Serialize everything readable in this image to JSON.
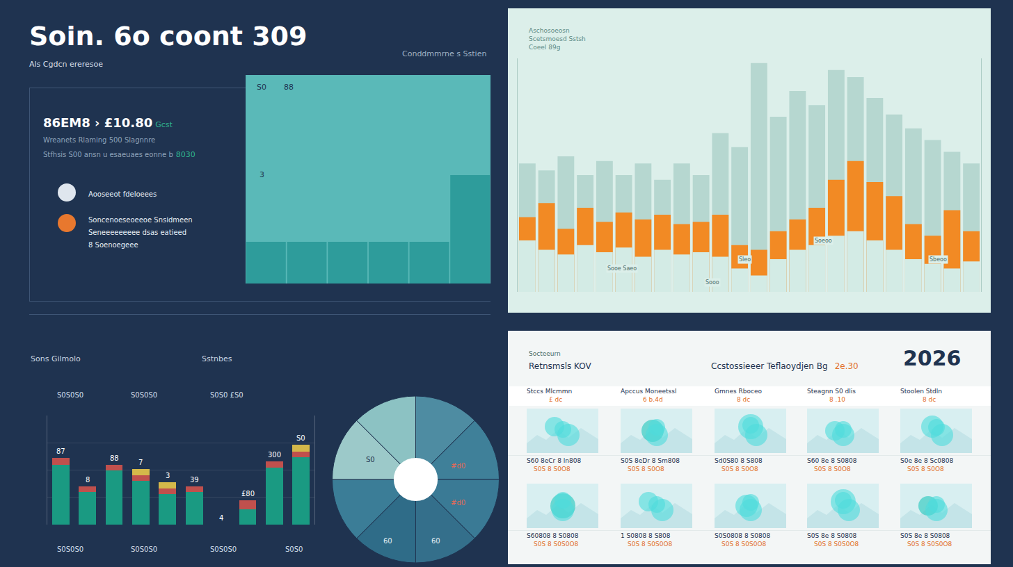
{
  "header": {
    "title": "Soin. 6o coont 309",
    "subtitle": "Als Cgdcn ereresoe",
    "note": "Conddmmrne s Sstien"
  },
  "summary": {
    "kpi": "86EM8 › £10.80",
    "kpi_tag": "Gcst",
    "line": "Wreanets Rlaming 500 Slagnnre",
    "line_text": "Stfhsis S00 ansn u esaeuaes eonne b",
    "line_value": "8030",
    "items": [
      [
        "Aooseeot fdeloeees"
      ],
      [
        "Soncenoeseoeeoe Snsidmeen",
        "Seneeeeeeeee dsas eatieed",
        "8 Soenoegeee"
      ]
    ]
  },
  "chart_data": [
    {
      "type": "bar",
      "categories": [
        null,
        null,
        null,
        null,
        null,
        null
      ],
      "values": [
        20,
        20,
        20,
        20,
        20,
        52
      ],
      "color": "#2e9c9b",
      "ylim": [
        0,
        100
      ],
      "yticks": [
        0,
        100
      ],
      "tick_labels": false,
      "annotations": [
        "S0",
        "88",
        "3"
      ]
    },
    {
      "type": "bar",
      "title": "Aschosoeosn\nScetsmoesd Sstsh\nCoeel 89g",
      "stacked": false,
      "categories": [
        null,
        null,
        null,
        null,
        null,
        null,
        null,
        null,
        null,
        null,
        null,
        null,
        null,
        null,
        null,
        null,
        null,
        null,
        null,
        null,
        null,
        null,
        null,
        null
      ],
      "series": [
        {
          "color": "#b6d7d0",
          "values": [
            55,
            52,
            58,
            50,
            56,
            50,
            55,
            48,
            55,
            50,
            68,
            62,
            98,
            75,
            86,
            80,
            95,
            92,
            83,
            76,
            70,
            65,
            60,
            55
          ]
        },
        {
          "color": "#f28a24",
          "values": [
            32,
            38,
            27,
            36,
            30,
            34,
            31,
            33,
            29,
            30,
            33,
            20,
            18,
            26,
            31,
            36,
            48,
            56,
            47,
            41,
            29,
            24,
            35,
            26
          ]
        },
        {
          "color": "#d3ebe5",
          "values": [
            22,
            18,
            16,
            20,
            17,
            19,
            15,
            18,
            16,
            17,
            15,
            10,
            7,
            14,
            18,
            20,
            24,
            26,
            22,
            18,
            14,
            12,
            10,
            13
          ]
        }
      ],
      "ylim": [
        0,
        100
      ],
      "yticks": [
        0,
        100
      ],
      "tick_labels": false,
      "annotations": [
        "Sooe Saeo",
        "Sooo",
        "Sleo",
        "Soeoo",
        "Sbeoo"
      ]
    },
    {
      "type": "bar",
      "title": "Sons Gilmolo",
      "subtitle": "Sstnbes",
      "stacked": true,
      "categories": [
        null,
        null,
        null,
        null,
        null,
        null,
        null,
        null,
        null,
        null
      ],
      "series": [
        {
          "color": "#1a9a82",
          "values": [
            55,
            30,
            50,
            40,
            28,
            30,
            0,
            14,
            52,
            62
          ]
        },
        {
          "color": "#c0504d",
          "values": [
            6,
            5,
            5,
            5,
            5,
            5,
            0,
            8,
            6,
            5
          ]
        },
        {
          "color": "#d4b84a",
          "values": [
            0,
            0,
            0,
            6,
            6,
            0,
            0,
            0,
            0,
            6
          ]
        }
      ],
      "ylim": [
        0,
        100
      ],
      "yticks": [
        0,
        25,
        50,
        75,
        100
      ],
      "grid": true,
      "tick_labels": false,
      "annotations": [
        "87",
        "8",
        "88",
        "7",
        "3",
        "39",
        "4",
        "£80",
        "300",
        "S0"
      ],
      "top_labels": [
        "S0S0S0",
        "S0S0S0",
        "S0S0 £S0"
      ],
      "bottom_labels": [
        "S0S0S0",
        "S0S0S0",
        "S0S0S0",
        "S0S0"
      ]
    },
    {
      "type": "pie",
      "values": [
        12.5,
        12.5,
        12.5,
        12.5,
        12.5,
        12.5,
        12.5,
        12.5
      ],
      "colors": [
        "#4e8ca2",
        "#3f8099",
        "#3a7a95",
        "#346f8b",
        "#2f6c88",
        "#3b7d97",
        "#9cc9c9",
        "#8cc2c3"
      ],
      "annotations": [
        "S0",
        "#d0",
        "#d0",
        "60",
        "60"
      ]
    }
  ],
  "cards": {
    "label": "Socteeurn",
    "title": "Retnsmsls KOV",
    "subtitle": "Ccstossieeer Teflaoydjen Bg",
    "subtitle_value": "2e.30",
    "year": "2026",
    "columns": [
      {
        "head": "Stccs Mlcmmn",
        "sub": "£ dc"
      },
      {
        "head": "Apccus Moneetssl",
        "sub": "6 b.4d"
      },
      {
        "head": "Gmnes Rboceo",
        "sub": "8 dc"
      },
      {
        "head": "Steagnn S0 dlis",
        "sub": "8 .10"
      },
      {
        "head": "Stoolen Stdln",
        "sub": "8 dc"
      }
    ],
    "rows": [
      [
        [
          "S60 8eCr 8 ln808",
          "S0S 8 S0O8"
        ],
        [
          "S0S 8eDr 8 Sm808",
          "S0S 8 S0O8"
        ],
        [
          "Sd0S80 8 S808",
          "S0S 8 S0O8"
        ],
        [
          "S60 8e 8 S0808",
          "S0S 8 S0O8"
        ],
        [
          "S0e 8e 8 Sc0808",
          "S0S 8 S0O8"
        ]
      ],
      [
        [
          "S60808 8 S0808",
          "S0S 8 S0S0O8"
        ],
        [
          "1 S0808 8 S808",
          "S0S 8 S0S0O8"
        ],
        [
          "S0S0808 8 S0808",
          "S0S 8 S0S0O8"
        ],
        [
          "S0S 8e 8 S0808",
          "S0S 8 S0S0O8"
        ],
        [
          "S0S 8e 8 S0808",
          "S0S 8 S0S0O8"
        ]
      ]
    ]
  }
}
